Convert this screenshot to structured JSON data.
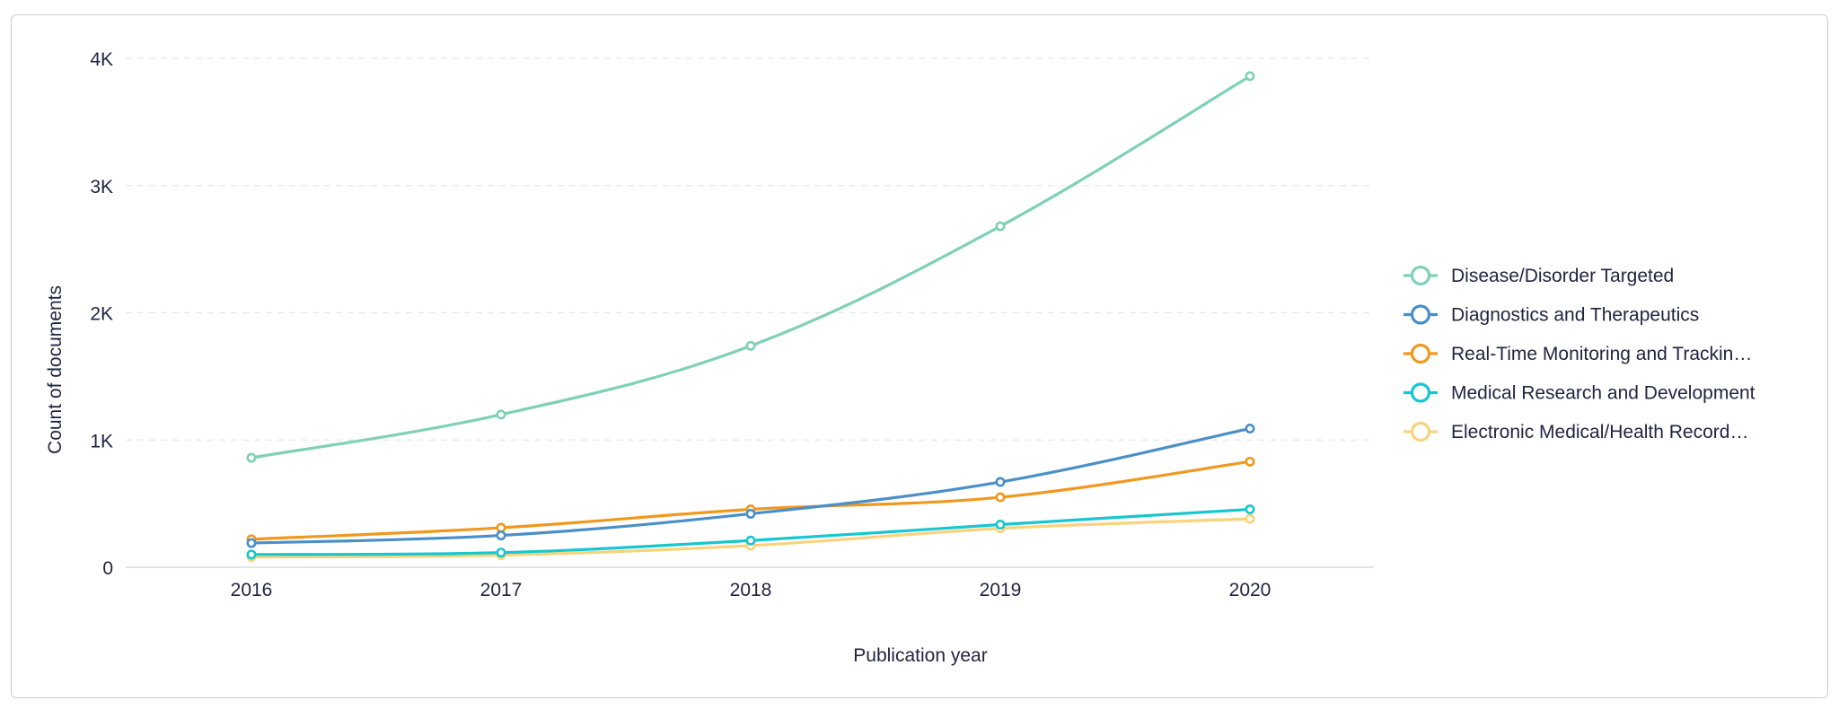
{
  "chart_data": {
    "type": "line",
    "title": "",
    "xlabel": "Publication year",
    "ylabel": "Count of documents",
    "x": [
      "2016",
      "2017",
      "2018",
      "2019",
      "2020"
    ],
    "ylim": [
      0,
      4000
    ],
    "yticks": [
      0,
      1000,
      2000,
      3000,
      4000
    ],
    "ytick_labels": [
      "0",
      "1K",
      "2K",
      "3K",
      "4K"
    ],
    "grid": true,
    "legend_position": "right",
    "series": [
      {
        "name": "Disease/Disorder Targeted",
        "color": "#7fd1b4",
        "values": [
          860,
          1200,
          1740,
          2680,
          3860
        ]
      },
      {
        "name": "Diagnostics and Therapeutics",
        "color": "#4a8fc7",
        "values": [
          190,
          250,
          420,
          670,
          1090
        ]
      },
      {
        "name": "Real-Time Monitoring and Trackin…",
        "color": "#f0981e",
        "values": [
          220,
          310,
          455,
          550,
          830
        ]
      },
      {
        "name": "Medical Research and Development",
        "color": "#16c7cf",
        "values": [
          100,
          115,
          210,
          335,
          455
        ]
      },
      {
        "name": "Electronic Medical/Health Record…",
        "color": "#f8d37c",
        "values": [
          80,
          95,
          170,
          305,
          380
        ]
      }
    ]
  }
}
